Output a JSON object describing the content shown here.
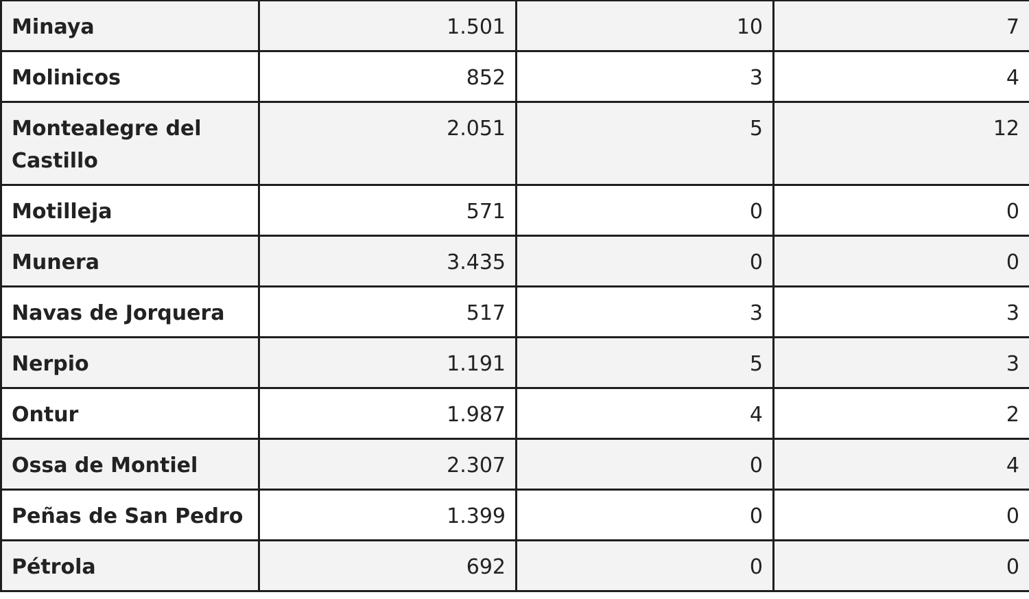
{
  "table": {
    "rows": [
      [
        "Minaya",
        "1.501",
        "10",
        "7"
      ],
      [
        "Molinicos",
        "852",
        "3",
        "4"
      ],
      [
        "Montealegre del Castillo",
        "2.051",
        "5",
        "12"
      ],
      [
        "Motilleja",
        "571",
        "0",
        "0"
      ],
      [
        "Munera",
        "3.435",
        "0",
        "0"
      ],
      [
        "Navas de Jorquera",
        "517",
        "3",
        "3"
      ],
      [
        "Nerpio",
        "1.191",
        "5",
        "3"
      ],
      [
        "Ontur",
        "1.987",
        "4",
        "2"
      ],
      [
        "Ossa de Montiel",
        "2.307",
        "0",
        "4"
      ],
      [
        "Peñas de San Pedro",
        "1.399",
        "0",
        "0"
      ],
      [
        "Pétrola",
        "692",
        "0",
        "0"
      ]
    ]
  }
}
